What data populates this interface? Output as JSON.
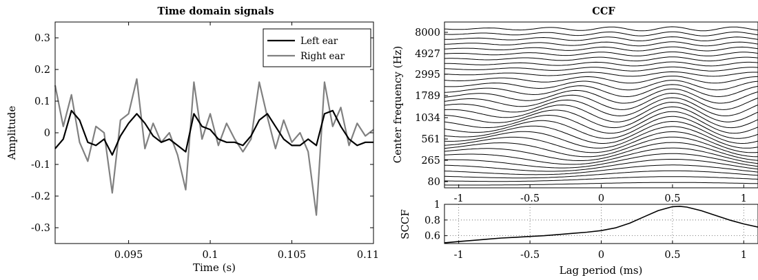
{
  "chart_data": [
    {
      "type": "line",
      "title": "Time domain signals",
      "xlabel": "Time (s)",
      "ylabel": "Amplitude",
      "xlim": [
        0.0905,
        0.11
      ],
      "ylim": [
        -0.35,
        0.35
      ],
      "xticks": [
        "0.095",
        "0.1",
        "0.105",
        "0.11"
      ],
      "yticks": [
        "0.3",
        "0.2",
        "0.1",
        "0",
        "-0.1",
        "-0.2",
        "-0.3"
      ],
      "legend_position": "top-right",
      "grid": false,
      "series": [
        {
          "name": "Left ear",
          "color": "#000000",
          "x": [
            0.0905,
            0.091,
            0.0915,
            0.092,
            0.0925,
            0.093,
            0.0935,
            0.094,
            0.0945,
            0.095,
            0.0955,
            0.096,
            0.0965,
            0.097,
            0.0975,
            0.098,
            0.0985,
            0.099,
            0.0995,
            0.1,
            0.1005,
            0.101,
            0.1015,
            0.102,
            0.1025,
            0.103,
            0.1035,
            0.104,
            0.1045,
            0.105,
            0.1055,
            0.106,
            0.1065,
            0.107,
            0.1075,
            0.108,
            0.1085,
            0.109,
            0.1095,
            0.11
          ],
          "y": [
            -0.05,
            -0.02,
            0.07,
            0.04,
            -0.03,
            -0.04,
            -0.02,
            -0.07,
            -0.01,
            0.03,
            0.06,
            0.03,
            -0.01,
            -0.03,
            -0.02,
            -0.04,
            -0.06,
            0.06,
            0.02,
            0.01,
            -0.02,
            -0.03,
            -0.03,
            -0.04,
            -0.01,
            0.04,
            0.06,
            0.02,
            -0.02,
            -0.04,
            -0.04,
            -0.02,
            -0.04,
            0.06,
            0.07,
            0.02,
            -0.02,
            -0.04,
            -0.03,
            -0.03
          ]
        },
        {
          "name": "Right ear",
          "color": "#808080",
          "x": [
            0.0905,
            0.091,
            0.0915,
            0.092,
            0.0925,
            0.093,
            0.0935,
            0.094,
            0.0945,
            0.095,
            0.0955,
            0.096,
            0.0965,
            0.097,
            0.0975,
            0.098,
            0.0985,
            0.099,
            0.0995,
            0.1,
            0.1005,
            0.101,
            0.1015,
            0.102,
            0.1025,
            0.103,
            0.1035,
            0.104,
            0.1045,
            0.105,
            0.1055,
            0.106,
            0.1065,
            0.107,
            0.1075,
            0.108,
            0.1085,
            0.109,
            0.1095,
            0.11
          ],
          "y": [
            0.15,
            0.02,
            0.12,
            -0.03,
            -0.09,
            0.02,
            0.0,
            -0.19,
            0.04,
            0.06,
            0.17,
            -0.05,
            0.03,
            -0.03,
            0.0,
            -0.07,
            -0.18,
            0.16,
            -0.02,
            0.06,
            -0.04,
            0.03,
            -0.02,
            -0.06,
            -0.02,
            0.16,
            0.05,
            -0.05,
            0.04,
            -0.03,
            0.0,
            -0.06,
            -0.26,
            0.16,
            0.02,
            0.08,
            -0.04,
            0.03,
            -0.01,
            0.01
          ]
        }
      ]
    },
    {
      "type": "line",
      "title": "CCF",
      "xlabel": "",
      "ylabel": "Center frequency (Hz)",
      "xlim": [
        -1.1,
        1.1
      ],
      "xticks": [
        "-1",
        "-0.5",
        "0",
        "0.5",
        "1"
      ],
      "yticks": [
        "8000",
        "4927",
        "2995",
        "1789",
        "1034",
        "561",
        "265",
        "80"
      ],
      "grid": false,
      "note_channels": 32
    },
    {
      "type": "line",
      "title": "",
      "xlabel": "Lag period (ms)",
      "ylabel": "SCCF",
      "xlim": [
        -1.1,
        1.1
      ],
      "ylim": [
        0.5,
        1.0
      ],
      "xticks": [
        "-1",
        "-0.5",
        "0",
        "0.5",
        "1"
      ],
      "yticks": [
        "1",
        "0.8",
        "0.6"
      ],
      "grid": true,
      "series": [
        {
          "name": "",
          "color": "#000000",
          "x": [
            -1.1,
            -1.0,
            -0.9,
            -0.8,
            -0.7,
            -0.6,
            -0.5,
            -0.4,
            -0.3,
            -0.2,
            -0.1,
            0.0,
            0.1,
            0.2,
            0.3,
            0.4,
            0.5,
            0.55,
            0.6,
            0.7,
            0.8,
            0.9,
            1.0,
            1.1
          ],
          "y": [
            0.51,
            0.525,
            0.54,
            0.555,
            0.57,
            0.58,
            0.59,
            0.6,
            0.615,
            0.63,
            0.645,
            0.665,
            0.7,
            0.76,
            0.84,
            0.92,
            0.97,
            0.975,
            0.965,
            0.92,
            0.86,
            0.8,
            0.75,
            0.71
          ]
        }
      ]
    }
  ]
}
